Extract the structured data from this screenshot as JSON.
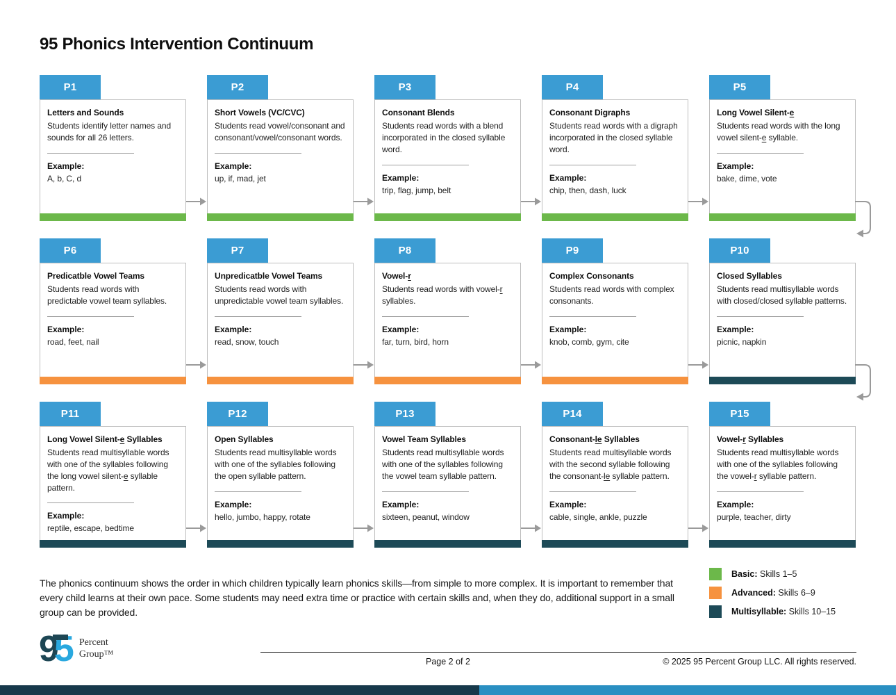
{
  "header": {
    "title": "95 Phonics Intervention Continuum"
  },
  "colors": {
    "tab": "#3b9cd3",
    "basic": "#6cb84a",
    "advanced": "#f6923f",
    "multisyllable": "#1d4a57",
    "footer_bar_left": "#17394b",
    "footer_bar_right": "#2a8fc2",
    "logo_dark": "#1d4654",
    "logo_light": "#29a8df"
  },
  "cards": [
    {
      "id": "P1",
      "title": "Letters and Sounds",
      "description": "Students identify letter names and sounds for all 26 letters.",
      "example_label": "Example:",
      "examples": "A, b, C, d",
      "level": "basic"
    },
    {
      "id": "P2",
      "title": "Short Vowels (VC/CVC)",
      "description": "Students read vowel/consonant and consonant/vowel/consonant words.",
      "example_label": "Example:",
      "examples": "up, if, mad, jet",
      "level": "basic"
    },
    {
      "id": "P3",
      "title": "Consonant Blends",
      "description": "Students read words with a blend incorporated in the closed syllable word.",
      "example_label": "Example:",
      "examples": "trip, flag, jump, belt",
      "level": "basic"
    },
    {
      "id": "P4",
      "title": "Consonant Digraphs",
      "description": "Students read words with a digraph incorporated in the closed syllable word.",
      "example_label": "Example:",
      "examples": "chip, then, dash, luck",
      "level": "basic"
    },
    {
      "id": "P5",
      "title": "Long Vowel Silent-[u]e[/u]",
      "description": "Students read words with the long vowel silent-[u]e[/u] syllable.",
      "example_label": "Example:",
      "examples": "bake, dime, vote",
      "level": "basic"
    },
    {
      "id": "P6",
      "title": "Predicatble Vowel Teams",
      "description": "Students read words with predictable vowel team syllables.",
      "example_label": "Example:",
      "examples": "road, feet, nail",
      "level": "advanced"
    },
    {
      "id": "P7",
      "title": "Unpredicatble Vowel Teams",
      "description": "Students read words with unpredictable vowel team syllables.",
      "example_label": "Example:",
      "examples": "read, snow, touch",
      "level": "advanced"
    },
    {
      "id": "P8",
      "title": "Vowel-[u]r[/u]",
      "description": "Students read words with vowel-[u]r[/u] syllables.",
      "example_label": "Example:",
      "examples": "far, turn, bird, horn",
      "level": "advanced"
    },
    {
      "id": "P9",
      "title": "Complex Consonants",
      "description": "Students read words with complex consonants.",
      "example_label": "Example:",
      "examples": "knob, comb, gym, cite",
      "level": "advanced"
    },
    {
      "id": "P10",
      "title": "Closed Syllables",
      "description": "Students read multisyllable words with closed/closed syllable patterns.",
      "example_label": "Example:",
      "examples": "picnic, napkin",
      "level": "multisyllable"
    },
    {
      "id": "P11",
      "title": "Long Vowel Silent-[u]e[/u] Syllables",
      "description": "Students read multisyllable words with one of the syllables following the long vowel silent-[u]e[/u] syllable pattern.",
      "example_label": "Example:",
      "examples": "reptile, escape, bedtime",
      "level": "multisyllable"
    },
    {
      "id": "P12",
      "title": "Open Syllables",
      "description": "Students read multisyllable words with one of the syllables following the open syllable pattern.",
      "example_label": "Example:",
      "examples": "hello, jumbo, happy, rotate",
      "level": "multisyllable"
    },
    {
      "id": "P13",
      "title": "Vowel Team Syllables",
      "description": "Students read multisyllable words with one of the syllables following the vowel team syllable pattern.",
      "example_label": "Example:",
      "examples": "sixteen, peanut, window",
      "level": "multisyllable"
    },
    {
      "id": "P14",
      "title": "Consonant-[u]le[/u] Syllables",
      "description": "Students read multisyllable words with the second syllable following the consonant-[u]le[/u] syllable pattern.",
      "example_label": "Example:",
      "examples": "cable, single, ankle, puzzle",
      "level": "multisyllable"
    },
    {
      "id": "P15",
      "title": "Vowel-[u]r[/u] Syllables",
      "description": "Students read multisyllable words with one of the syllables following the vowel-[u]r[/u] syllable pattern.",
      "example_label": "Example:",
      "examples": "purple, teacher, dirty",
      "level": "multisyllable"
    }
  ],
  "note": {
    "text": "The phonics continuum shows the order in which children typically learn phonics skills—from simple to more complex. It is important to remember that every child learns at their own pace. Some students may need extra time or practice with certain skills and, when they do, additional support in a small group can be provided."
  },
  "legend": {
    "items": [
      {
        "label": "Basic:",
        "range": "Skills 1–5"
      },
      {
        "label": "Advanced:",
        "range": "Skills 6–9"
      },
      {
        "label": "Multisyllable:",
        "range": "Skills 10–15"
      }
    ]
  },
  "footer": {
    "logo_digit_left": "9",
    "logo_digit_right": "5",
    "logo_word1": "Percent",
    "logo_word2": "Group™",
    "page_label": "Page 2 of 2",
    "copyright": "© 2025 95 Percent Group LLC. All rights reserved."
  }
}
